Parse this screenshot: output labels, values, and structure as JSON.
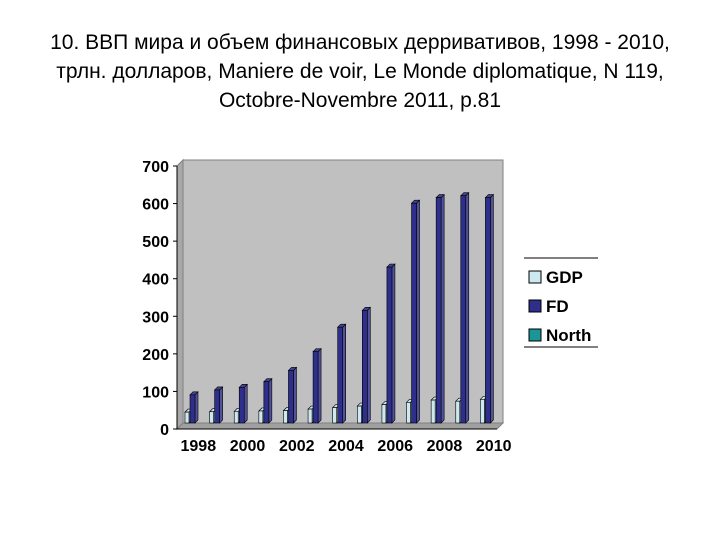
{
  "title": "10. ВВП мира и объем финансовых дерривативов, 1998 - 2010, трлн. долларов, Maniere de voir, Le Monde diplomatique, N 119, Octobre-Novembre 2011, p.81",
  "colors": {
    "plot_bg": "#c0c0c0",
    "GDP": "#cce8f0",
    "FD": "#2e2e8c",
    "North": "#1a9696"
  },
  "chart_data": {
    "type": "bar",
    "categories": [
      "1998",
      "1999",
      "2000",
      "2001",
      "2002",
      "2003",
      "2004",
      "2005",
      "2006",
      "2007",
      "2008",
      "2009",
      "2010"
    ],
    "x_tick_labels": [
      "1998",
      "2000",
      "2002",
      "2004",
      "2006",
      "2008",
      "2010"
    ],
    "series": [
      {
        "name": "GDP",
        "values": [
          29,
          30,
          31,
          32,
          33,
          37,
          41,
          45,
          49,
          55,
          61,
          58,
          63
        ]
      },
      {
        "name": "FD",
        "values": [
          75,
          88,
          95,
          110,
          140,
          190,
          255,
          300,
          415,
          585,
          600,
          605,
          600
        ]
      },
      {
        "name": "North",
        "values": [
          0,
          0,
          0,
          0,
          0,
          0,
          0,
          0,
          0,
          0,
          0,
          0,
          0
        ]
      }
    ],
    "ylim": [
      0,
      700
    ],
    "y_ticks": [
      0,
      100,
      200,
      300,
      400,
      500,
      600,
      700
    ],
    "grid": false,
    "legend_position": "right"
  }
}
